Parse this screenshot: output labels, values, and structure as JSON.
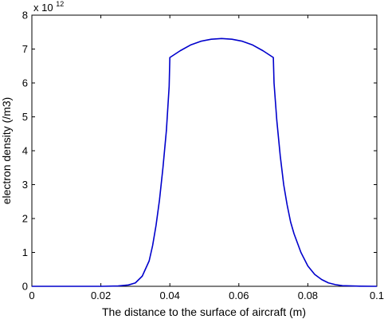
{
  "chart_data": {
    "type": "line",
    "title": "",
    "xlabel": "The distance to the surface of aircraft (m)",
    "ylabel": "electron density (/m3)",
    "xlim": [
      0,
      0.1
    ],
    "ylim": [
      0,
      8
    ],
    "y_scale_multiplier": {
      "base": "x 10",
      "exponent": "12"
    },
    "x_ticks": [
      {
        "value": 0,
        "label": "0"
      },
      {
        "value": 0.02,
        "label": "0.02"
      },
      {
        "value": 0.04,
        "label": "0.04"
      },
      {
        "value": 0.06,
        "label": "0.06"
      },
      {
        "value": 0.08,
        "label": "0.08"
      },
      {
        "value": 0.1,
        "label": "0.1"
      }
    ],
    "y_ticks": [
      {
        "value": 0,
        "label": "0"
      },
      {
        "value": 1,
        "label": "1"
      },
      {
        "value": 2,
        "label": "2"
      },
      {
        "value": 3,
        "label": "3"
      },
      {
        "value": 4,
        "label": "4"
      },
      {
        "value": 5,
        "label": "5"
      },
      {
        "value": 6,
        "label": "6"
      },
      {
        "value": 7,
        "label": "7"
      },
      {
        "value": 8,
        "label": "8"
      }
    ],
    "grid": false,
    "legend": "none",
    "series": [
      {
        "color": "#0000cc",
        "x": [
          0,
          0.005,
          0.01,
          0.015,
          0.02,
          0.025,
          0.028,
          0.03,
          0.032,
          0.034,
          0.035,
          0.036,
          0.037,
          0.038,
          0.039,
          0.0398,
          0.04,
          0.043,
          0.046,
          0.049,
          0.052,
          0.055,
          0.058,
          0.061,
          0.064,
          0.067,
          0.07,
          0.0702,
          0.071,
          0.072,
          0.073,
          0.074,
          0.075,
          0.076,
          0.078,
          0.08,
          0.082,
          0.084,
          0.086,
          0.088,
          0.09,
          0.095,
          0.1
        ],
        "y": [
          0,
          0,
          0,
          0,
          0,
          0.01,
          0.04,
          0.1,
          0.3,
          0.75,
          1.2,
          1.8,
          2.55,
          3.5,
          4.6,
          5.9,
          6.75,
          6.95,
          7.12,
          7.23,
          7.29,
          7.31,
          7.29,
          7.23,
          7.12,
          6.95,
          6.75,
          6.0,
          4.9,
          3.85,
          3.0,
          2.4,
          1.9,
          1.55,
          1.0,
          0.6,
          0.35,
          0.2,
          0.1,
          0.05,
          0.02,
          0.005,
          0
        ]
      }
    ]
  }
}
